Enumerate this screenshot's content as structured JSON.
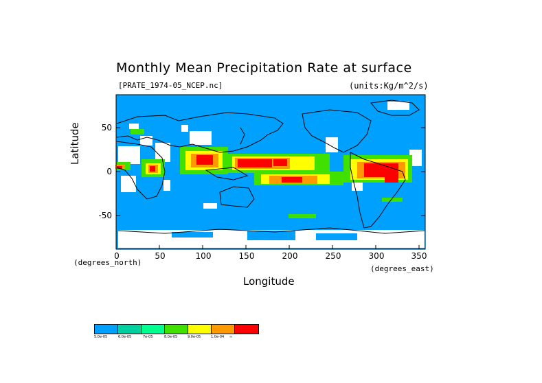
{
  "title": "Monthly Mean Precipitation Rate at surface",
  "file_label": "[PRATE_1974-05_NCEP.nc]",
  "units_label": "(units:Kg/m^2/s)",
  "axes": {
    "ylabel": "Latitude",
    "xlabel": "Longitude",
    "x_unit_label": "(degrees_north)",
    "y_unit_label": "(degrees_east)",
    "yticks": [
      "50",
      "0",
      "-50"
    ],
    "xticks": [
      "0",
      "50",
      "100",
      "150",
      "200",
      "250",
      "300",
      "350"
    ]
  },
  "legend": {
    "colors": [
      "#00a0ff",
      "#00d0a0",
      "#00ff90",
      "#40e000",
      "#ffff00",
      "#ff9900",
      "#ff0000"
    ],
    "labels": [
      "5.0e-05",
      "6.0e-05",
      "7e-05",
      "8.0e-05",
      "9.0e-05",
      "1.0e-04",
      "∞"
    ]
  },
  "map": {
    "ocean_color": "#00a0ff",
    "missing_color": "#ffffff",
    "heavy_color": "#ff0000"
  }
}
